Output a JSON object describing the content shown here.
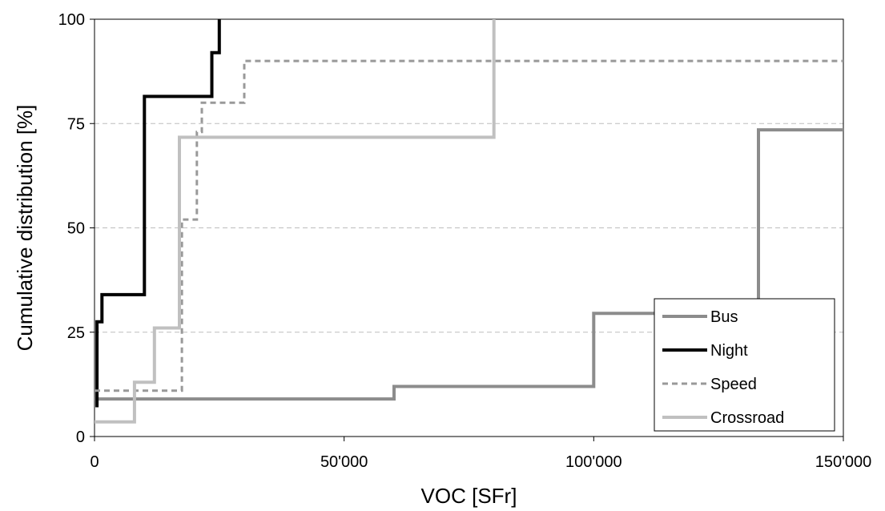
{
  "chart_data": {
    "type": "line",
    "xlabel": "VOC [SFr]",
    "ylabel": "Cumulative distribution [%]",
    "xlim": [
      0,
      150000
    ],
    "ylim": [
      0,
      100
    ],
    "x_ticks": [
      0,
      50000,
      100000,
      150000
    ],
    "x_tick_labels": [
      "0",
      "50'000",
      "100'000",
      "150'000"
    ],
    "y_ticks": [
      0,
      25,
      50,
      75,
      100
    ],
    "y_tick_labels": [
      "0",
      "25",
      "50",
      "75",
      "100"
    ],
    "grid": "horizontal dashed",
    "legend_position": "bottom-right",
    "step": true,
    "series": [
      {
        "name": "Bus",
        "color": "#8c8c8c",
        "dash": "solid",
        "points": [
          [
            0,
            9
          ],
          [
            60000,
            9
          ],
          [
            60000,
            12
          ],
          [
            100000,
            12
          ],
          [
            100000,
            29.5
          ],
          [
            133000,
            29.5
          ],
          [
            133000,
            73.5
          ],
          [
            150000,
            73.5
          ]
        ]
      },
      {
        "name": "Night",
        "color": "#000000",
        "dash": "solid",
        "points": [
          [
            500,
            7
          ],
          [
            500,
            27.5
          ],
          [
            1500,
            27.5
          ],
          [
            1500,
            34
          ],
          [
            10000,
            34
          ],
          [
            10000,
            81.5
          ],
          [
            23500,
            81.5
          ],
          [
            23500,
            92
          ],
          [
            25000,
            92
          ],
          [
            25000,
            100
          ]
        ]
      },
      {
        "name": "Speed",
        "color": "#999999",
        "dash": "dashed",
        "points": [
          [
            0,
            11
          ],
          [
            17500,
            11
          ],
          [
            17500,
            52
          ],
          [
            20500,
            52
          ],
          [
            20500,
            73
          ],
          [
            21500,
            73
          ],
          [
            21500,
            80
          ],
          [
            30000,
            80
          ],
          [
            30000,
            90
          ],
          [
            150000,
            90
          ]
        ]
      },
      {
        "name": "Crossroad",
        "color": "#c0c0c0",
        "dash": "solid",
        "points": [
          [
            0,
            3.5
          ],
          [
            8000,
            3.5
          ],
          [
            8000,
            13
          ],
          [
            12000,
            13
          ],
          [
            12000,
            26
          ],
          [
            17000,
            26
          ],
          [
            17000,
            71.7
          ],
          [
            80000,
            71.7
          ],
          [
            80000,
            100
          ]
        ]
      }
    ]
  }
}
